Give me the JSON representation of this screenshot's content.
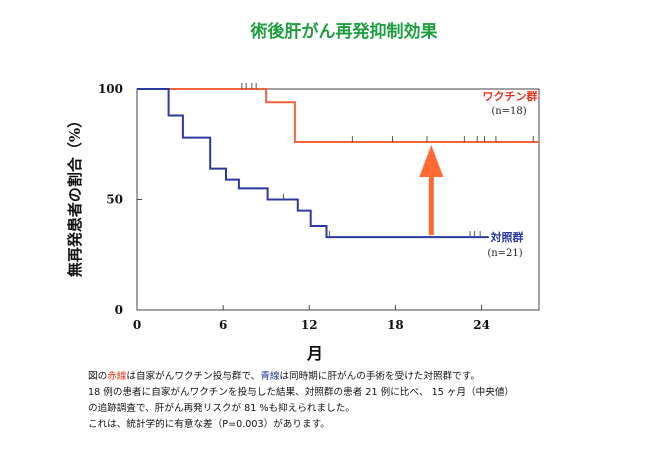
{
  "chart_data": {
    "type": "line",
    "title": "術後肝がん再発抑制効果",
    "xlabel": "月",
    "ylabel": "無再発患者の割合（%）",
    "xlim": [
      0,
      28
    ],
    "ylim": [
      0,
      100
    ],
    "x_ticks": [
      0,
      6,
      12,
      18,
      24
    ],
    "y_ticks": [
      0,
      50,
      100
    ],
    "grid": false,
    "series": [
      {
        "name": "ワクチン群",
        "n_label": "(n=18)",
        "color": "#f0643c",
        "steps": [
          [
            0,
            100
          ],
          [
            9,
            100
          ],
          [
            9,
            94
          ],
          [
            11,
            94
          ],
          [
            11,
            76
          ],
          [
            28,
            76
          ]
        ],
        "censor_at_100": [
          7.3,
          7.6,
          8.0,
          8.3
        ],
        "censor_at_76": [
          15.0,
          17.8,
          20.2,
          22.8,
          23.7,
          24.2,
          25.0,
          27.6
        ]
      },
      {
        "name": "対照群",
        "n_label": "(n=21)",
        "color": "#2b3a9e",
        "steps": [
          [
            0,
            100
          ],
          [
            2.2,
            100
          ],
          [
            2.2,
            88
          ],
          [
            3.2,
            88
          ],
          [
            3.2,
            78
          ],
          [
            5.1,
            78
          ],
          [
            5.1,
            64
          ],
          [
            6.2,
            64
          ],
          [
            6.2,
            59
          ],
          [
            7.1,
            59
          ],
          [
            7.1,
            55
          ],
          [
            9.1,
            55
          ],
          [
            9.1,
            50
          ],
          [
            11.2,
            50
          ],
          [
            11.2,
            45
          ],
          [
            12.1,
            45
          ],
          [
            12.1,
            38
          ],
          [
            13.2,
            38
          ],
          [
            13.2,
            33
          ],
          [
            24.5,
            33
          ]
        ],
        "censor_at_50": [
          10.2
        ],
        "censor_at_33": [
          13.4,
          23.2,
          23.5,
          23.9
        ]
      }
    ],
    "arrow": {
      "from": [
        20.5,
        33
      ],
      "to": [
        20.5,
        76
      ],
      "color": "#ff6a33"
    }
  },
  "caption": {
    "line1_pre": "図の",
    "line1_red": "赤線",
    "line1_mid": "は自家がんワクチン投与群で、",
    "line1_blue": "青線",
    "line1_post": "は同時期に肝がんの手術を受けた対照群です。",
    "line2": "18 例の患者に自家がんワクチンを投与した結果、対照群の患者 21 例に比べ、 15 ヶ月（中央値）",
    "line3": "の追跡調査で、肝がん再発リスクが 81 %も抑えられました。",
    "line4": "これは、統計学的に有意な差（P=0.003）があります。"
  }
}
